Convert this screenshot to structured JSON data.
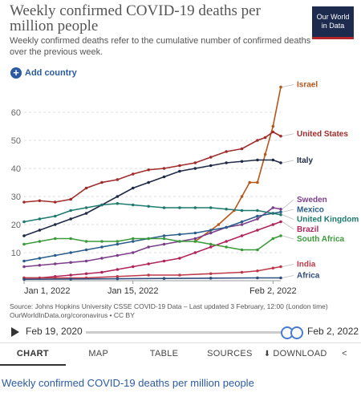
{
  "header": {
    "title": "Weekly confirmed COVID-19 deaths per million people",
    "subtitle": "Weekly confirmed deaths refer to the cumulative number of confirmed deaths over the previous week.",
    "logo_line1": "Our World",
    "logo_line2": "in Data",
    "add_country": "Add country"
  },
  "source_text": "Source: Johns Hopkins University CSSE COVID-19 Data – Last updated 3 February, 12:00 (London time) OurWorldInData.org/coronavirus • CC BY",
  "timeline": {
    "start": "Feb 19, 2020",
    "end": "Feb 2, 2022"
  },
  "tabs": [
    "CHART",
    "MAP",
    "TABLE",
    "SOURCES",
    "DOWNLOAD"
  ],
  "footer_title": "Weekly confirmed COVID-19 deaths per million people",
  "chart_data": {
    "type": "line",
    "title": "Weekly confirmed COVID-19 deaths per million people",
    "ylim": [
      0,
      70
    ],
    "xlim": [
      0,
      33
    ],
    "yticks": [
      10,
      20,
      30,
      40,
      50,
      60
    ],
    "xticks": [
      {
        "x": 0,
        "label": "Jan 1, 2022"
      },
      {
        "x": 14,
        "label": "Jan 15, 2022"
      },
      {
        "x": 32,
        "label": "Feb 2, 2022"
      }
    ],
    "x_unit": "days since Jan 1, 2022",
    "grid": true,
    "series": [
      {
        "name": "Israel",
        "color": "#b5561b",
        "x": [
          22,
          25,
          27,
          28,
          29,
          30,
          31,
          32,
          33
        ],
        "y": [
          14,
          20,
          25,
          30,
          35,
          35,
          45,
          55,
          69
        ]
      },
      {
        "name": "United States",
        "color": "#a02c2c",
        "x": [
          0,
          2,
          4,
          6,
          8,
          10,
          12,
          14,
          16,
          18,
          20,
          22,
          24,
          26,
          28,
          30,
          31,
          32,
          33
        ],
        "y": [
          28,
          28.5,
          28,
          29,
          33,
          35,
          36,
          38,
          39.5,
          40,
          41,
          42,
          44,
          46,
          47,
          50,
          51,
          53,
          51.5
        ]
      },
      {
        "name": "Italy",
        "color": "#1f2a44",
        "x": [
          0,
          2,
          4,
          6,
          8,
          10,
          12,
          14,
          16,
          18,
          20,
          22,
          24,
          26,
          28,
          30,
          32,
          33
        ],
        "y": [
          16,
          18,
          20,
          22,
          24,
          27,
          30,
          33,
          35,
          37,
          39,
          40,
          41,
          42,
          42.5,
          43,
          43,
          42
        ]
      },
      {
        "name": "Sweden",
        "color": "#7b3f8a",
        "x": [
          0,
          2,
          4,
          6,
          8,
          10,
          12,
          14,
          16,
          18,
          20,
          22,
          24,
          26,
          28,
          30,
          32,
          33
        ],
        "y": [
          5,
          5.5,
          6,
          6.5,
          7,
          8,
          9,
          10,
          12,
          13,
          14,
          15,
          17,
          19,
          20,
          22,
          26,
          25.5
        ]
      },
      {
        "name": "Mexico",
        "color": "#2a5d8a",
        "x": [
          0,
          2,
          4,
          6,
          8,
          10,
          12,
          14,
          16,
          18,
          20,
          22,
          24,
          26,
          28,
          30,
          32,
          33
        ],
        "y": [
          7,
          8,
          9,
          10,
          11,
          12,
          13,
          14,
          15,
          16,
          16.5,
          17,
          18,
          19,
          21,
          23,
          24,
          24.5
        ]
      },
      {
        "name": "United Kingdom",
        "color": "#1e7a6e",
        "x": [
          0,
          2,
          4,
          6,
          8,
          10,
          12,
          14,
          16,
          18,
          20,
          22,
          24,
          26,
          28,
          30,
          32,
          33
        ],
        "y": [
          21,
          22,
          23,
          25,
          26,
          27,
          27.5,
          27,
          26.5,
          26,
          26,
          26,
          26,
          25.5,
          25,
          25,
          24,
          23.5
        ]
      },
      {
        "name": "Brazil",
        "color": "#b0245b",
        "x": [
          0,
          2,
          4,
          6,
          8,
          10,
          12,
          14,
          16,
          18,
          20,
          22,
          24,
          26,
          28,
          30,
          32,
          33
        ],
        "y": [
          1,
          1,
          1.5,
          2,
          2.5,
          3,
          4,
          5,
          6,
          7,
          8,
          10,
          12,
          14,
          16,
          18,
          20,
          21
        ]
      },
      {
        "name": "South Africa",
        "color": "#3b9a3b",
        "x": [
          0,
          2,
          4,
          6,
          8,
          10,
          12,
          14,
          16,
          18,
          20,
          22,
          24,
          26,
          28,
          30,
          32,
          33
        ],
        "y": [
          13,
          14,
          15,
          15,
          14,
          14,
          14,
          15,
          15,
          15,
          14,
          14,
          13,
          12,
          11,
          11,
          15,
          16
        ]
      },
      {
        "name": "India",
        "color": "#c0394b",
        "x": [
          0,
          4,
          8,
          12,
          16,
          20,
          24,
          28,
          30,
          32,
          33
        ],
        "y": [
          1,
          1,
          1,
          1.5,
          2,
          2,
          2.5,
          3,
          3.5,
          4.5,
          5
        ]
      },
      {
        "name": "Africa",
        "color": "#2c4d7d",
        "x": [
          0,
          6,
          12,
          18,
          24,
          30,
          33
        ],
        "y": [
          0.5,
          0.6,
          0.7,
          0.8,
          0.9,
          1,
          1
        ]
      }
    ]
  }
}
